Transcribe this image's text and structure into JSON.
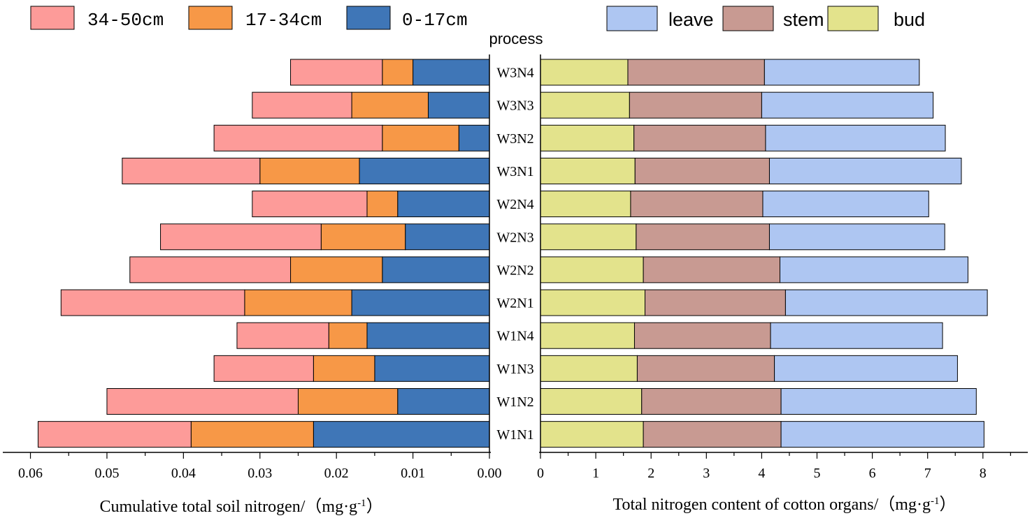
{
  "chart_data": [
    {
      "type": "bar",
      "orientation": "horizontal-reversed",
      "stacked": true,
      "category_title": "process",
      "categories": [
        "W3N4",
        "W3N3",
        "W3N2",
        "W3N1",
        "W2N4",
        "W2N3",
        "W2N2",
        "W2N1",
        "W1N4",
        "W1N3",
        "W1N2",
        "W1N1"
      ],
      "series": [
        {
          "name": "0-17cm",
          "color": "#3f76b7",
          "values": [
            0.01,
            0.008,
            0.004,
            0.017,
            0.012,
            0.011,
            0.014,
            0.018,
            0.016,
            0.015,
            0.012,
            0.023
          ]
        },
        {
          "name": "17-34cm",
          "color": "#f79847",
          "values": [
            0.004,
            0.01,
            0.01,
            0.013,
            0.004,
            0.011,
            0.012,
            0.014,
            0.005,
            0.008,
            0.013,
            0.016
          ]
        },
        {
          "name": "34-50cm",
          "color": "#fd9b99",
          "values": [
            0.012,
            0.013,
            0.022,
            0.018,
            0.015,
            0.021,
            0.021,
            0.024,
            0.012,
            0.013,
            0.025,
            0.02
          ]
        }
      ],
      "legend_order": [
        "34-50cm",
        "17-34cm",
        "0-17cm"
      ],
      "xlabel": "Cumulative total soil nitrogen/（mg·g",
      "xlabel_sup": "-1",
      "xlabel_end": "）",
      "xlim": [
        0,
        0.064
      ],
      "xticks": [
        0.06,
        0.05,
        0.04,
        0.03,
        0.02,
        0.01,
        0.0
      ],
      "xtick_labels": [
        "0.06",
        "0.05",
        "0.04",
        "0.03",
        "0.02",
        "0.01",
        "0.00"
      ],
      "legend_position": "top-left"
    },
    {
      "type": "bar",
      "orientation": "horizontal",
      "stacked": true,
      "categories": [
        "W3N4",
        "W3N3",
        "W3N2",
        "W3N1",
        "W2N4",
        "W2N3",
        "W2N2",
        "W2N1",
        "W1N4",
        "W1N3",
        "W1N2",
        "W1N1"
      ],
      "series": [
        {
          "name": "bud",
          "color": "#e3e38c",
          "values": [
            1.58,
            1.61,
            1.69,
            1.71,
            1.63,
            1.73,
            1.86,
            1.89,
            1.7,
            1.75,
            1.83,
            1.86
          ]
        },
        {
          "name": "stem",
          "color": "#c89a92",
          "values": [
            2.47,
            2.39,
            2.38,
            2.43,
            2.39,
            2.41,
            2.47,
            2.54,
            2.46,
            2.48,
            2.52,
            2.49
          ]
        },
        {
          "name": "leave",
          "color": "#aec6f2",
          "values": [
            2.8,
            3.1,
            3.25,
            3.47,
            3.0,
            3.17,
            3.4,
            3.65,
            3.11,
            3.31,
            3.53,
            3.67
          ]
        }
      ],
      "legend_order": [
        "leave",
        "stem",
        "bud"
      ],
      "xlabel": "Total nitrogen content of cotton organs/（mg·g",
      "xlabel_sup": "-1",
      "xlabel_end": "）",
      "xlim": [
        0,
        8.5
      ],
      "xticks": [
        0,
        1,
        2,
        3,
        4,
        5,
        6,
        7,
        8
      ],
      "xtick_labels": [
        "0",
        "1",
        "2",
        "3",
        "4",
        "5",
        "6",
        "7",
        "8"
      ],
      "legend_position": "top-right"
    }
  ]
}
